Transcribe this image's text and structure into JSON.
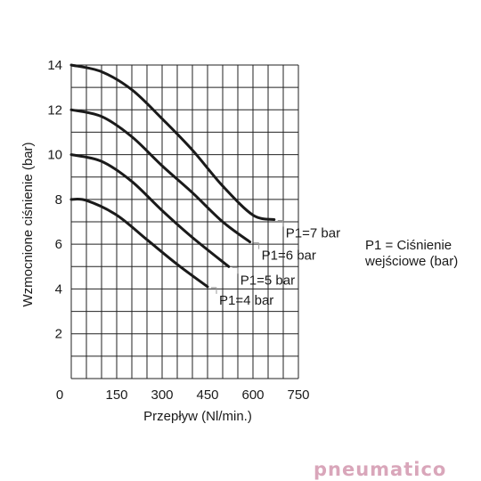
{
  "chart_data": {
    "type": "line",
    "xlabel": "Przepływ (Nl/min.)",
    "ylabel": "Wzmocnione ciśnienie (bar)",
    "xlim": [
      0,
      750
    ],
    "ylim": [
      0,
      14
    ],
    "x_ticks": [
      "0",
      "150",
      "300",
      "450",
      "600",
      "750"
    ],
    "y_ticks": [
      "2",
      "4",
      "6",
      "8",
      "10",
      "12",
      "14"
    ],
    "grid": true,
    "series": [
      {
        "name": "P1=7 bar",
        "x": [
          0,
          100,
          200,
          300,
          400,
          500,
          600,
          670
        ],
        "y": [
          14,
          13.7,
          12.9,
          11.6,
          10.2,
          8.6,
          7.3,
          7.1
        ]
      },
      {
        "name": "P1=6 bar",
        "x": [
          0,
          100,
          200,
          300,
          400,
          500,
          590
        ],
        "y": [
          12,
          11.7,
          10.8,
          9.5,
          8.3,
          7.0,
          6.1
        ]
      },
      {
        "name": "P1=5 bar",
        "x": [
          0,
          100,
          200,
          300,
          400,
          520
        ],
        "y": [
          10,
          9.7,
          8.8,
          7.5,
          6.3,
          5.0
        ]
      },
      {
        "name": "P1=4 bar",
        "x": [
          0,
          50,
          150,
          250,
          350,
          450
        ],
        "y": [
          8,
          7.95,
          7.3,
          6.2,
          5.1,
          4.1
        ]
      }
    ],
    "annotation": "P1 = Ciśnienie wejściowe (bar)"
  },
  "legend": {
    "line1": "P1 = Ciśnienie",
    "line2": "wejściowe (bar)"
  },
  "logo": {
    "text": "pneumatico",
    "color": "#d9a6ba"
  }
}
